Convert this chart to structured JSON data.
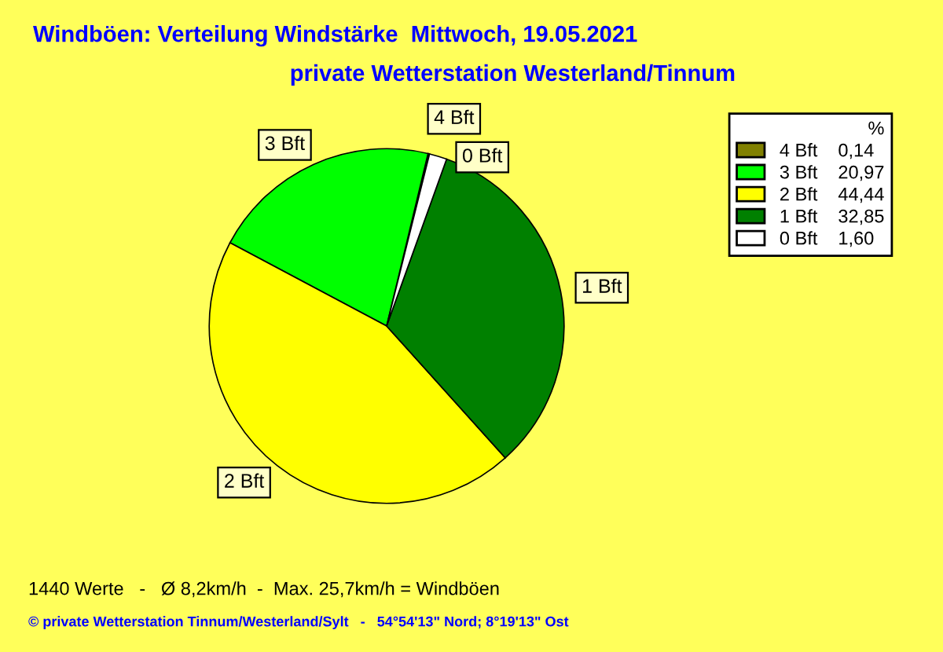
{
  "chart_data": {
    "type": "pie",
    "title": "Windböen: Verteilung Windstärke  Mittwoch, 19.05.2021",
    "subtitle": "private Wetterstation Westerland/Tinnum",
    "categories": [
      "4 Bft",
      "3 Bft",
      "2 Bft",
      "1 Bft",
      "0 Bft"
    ],
    "values": [
      0.14,
      20.97,
      44.44,
      32.85,
      1.6
    ],
    "value_labels": [
      "0,14",
      "20,97",
      "44,44",
      "32,85",
      "1,60"
    ],
    "colors": [
      "#808000",
      "#00ff00",
      "#ffff00",
      "#008000",
      "#ffffff"
    ],
    "legend_title": "%",
    "legend": "top right",
    "annotations": [
      "1440 Werte   -   Ø 8,2km/h  -  Max. 25,7km/h = Windböen",
      "© private Wetterstation Tinnum/Westerland/Sylt   -   54°54'13\" Nord; 8°19'13\" Ost"
    ]
  }
}
